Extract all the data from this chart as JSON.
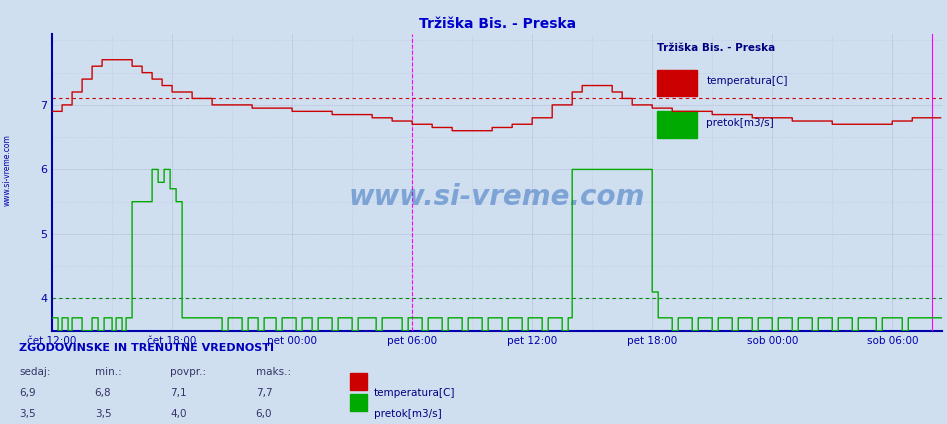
{
  "title": "Tržiška Bis. - Preska",
  "title_color": "#0000cc",
  "fig_bg_color": "#d0dff0",
  "plot_bg_color": "#d0dff0",
  "temp_color": "#cc0000",
  "flow_color": "#00aa00",
  "avg_temp_color": "#cc0000",
  "avg_flow_color": "#008800",
  "grid_color": "#aaaacc",
  "grid_minor_color": "#bbbbdd",
  "axis_color": "#0000aa",
  "text_color": "#0000aa",
  "magenta_color": "#ff00ff",
  "x_tick_labels": [
    "čet 12:00",
    "čet 18:00",
    "pet 00:00",
    "pet 06:00",
    "pet 12:00",
    "pet 18:00",
    "sob 00:00",
    "sob 06:00"
  ],
  "x_tick_hours": [
    0,
    6,
    12,
    18,
    24,
    30,
    36,
    42
  ],
  "ymin": 3.5,
  "ymax": 8.1,
  "yticks": [
    4,
    5,
    6,
    7
  ],
  "avg_temp": 7.1,
  "avg_flow": 4.0,
  "total_hours": 44.5,
  "magenta_vline": 18,
  "right_vline": 44.0,
  "watermark": "www.si-vreme.com",
  "watermark_color": "#1a5eb8",
  "legend_title": "Tržiška Bis. - Preska",
  "legend_items": [
    {
      "label": "temperatura[C]",
      "color": "#cc0000"
    },
    {
      "label": "pretok[m3/s]",
      "color": "#00aa00"
    }
  ],
  "table_header": "ZGODOVINSKE IN TRENUTNE VREDNOSTI",
  "table_cols": [
    "sedaj:",
    "min.:",
    "povpr.:",
    "maks.:"
  ],
  "table_data": [
    [
      "6,9",
      "6,8",
      "7,1",
      "7,7"
    ],
    [
      "3,5",
      "3,5",
      "4,0",
      "6,0"
    ]
  ]
}
